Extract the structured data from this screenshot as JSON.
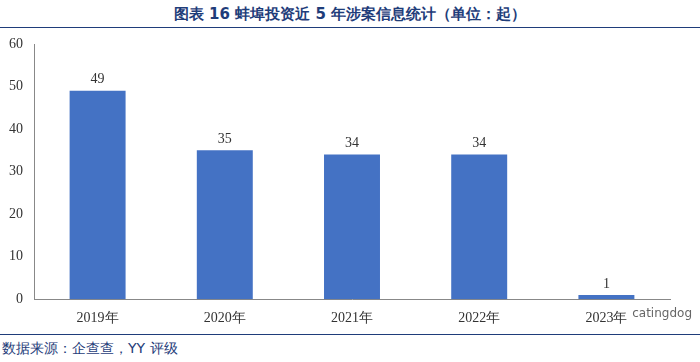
{
  "chart_data": {
    "type": "bar",
    "title": "图表 16 蚌埠投资近 5 年涉案信息统计（单位：起）",
    "categories": [
      "2019年",
      "2020年",
      "2021年",
      "2022年",
      "2023年"
    ],
    "values": [
      49,
      35,
      34,
      34,
      1
    ],
    "color": "#4472c4",
    "ylim": [
      0,
      60
    ],
    "yticks": [
      0,
      10,
      20,
      30,
      40,
      50,
      60
    ],
    "grid": false,
    "data_labels": true,
    "source": "数据来源：企查查，YY 评级",
    "annotations": [
      "catingdog"
    ]
  }
}
